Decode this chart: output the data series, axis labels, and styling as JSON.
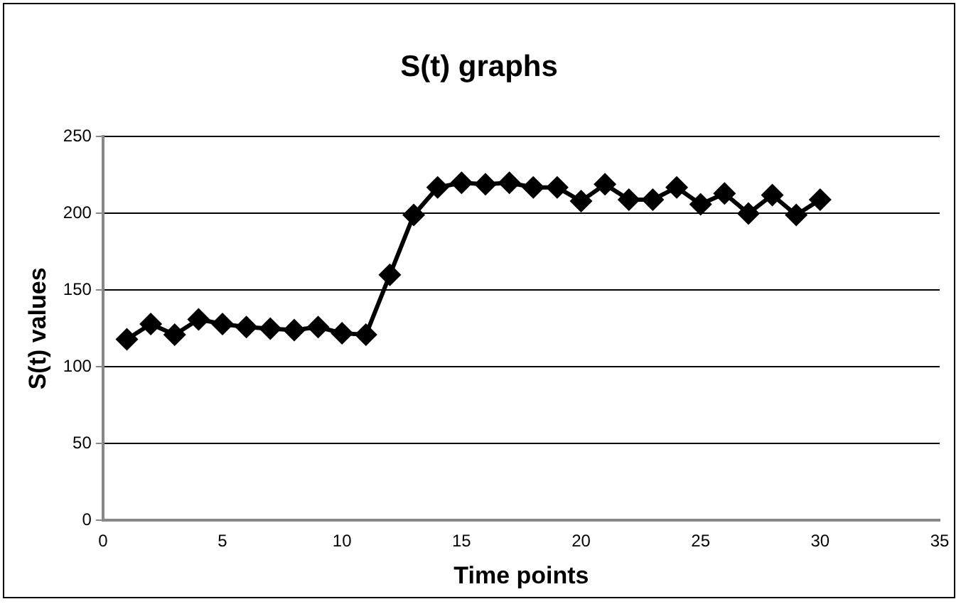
{
  "chart_data": {
    "type": "line",
    "title": "S(t) graphs",
    "xlabel": "Time points",
    "ylabel": "S(t) values",
    "x": [
      1,
      2,
      3,
      4,
      5,
      6,
      7,
      8,
      9,
      10,
      11,
      12,
      13,
      14,
      15,
      16,
      17,
      18,
      19,
      20,
      21,
      22,
      23,
      24,
      25,
      26,
      27,
      28,
      29,
      30
    ],
    "series": [
      {
        "color": "#000000",
        "values": [
          118,
          128,
          121,
          131,
          128,
          126,
          125,
          124,
          126,
          122,
          121,
          160,
          199,
          217,
          220,
          219,
          220,
          217,
          217,
          208,
          219,
          209,
          209,
          217,
          206,
          213,
          200,
          212,
          199,
          209
        ]
      }
    ],
    "xlim": [
      0,
      35
    ],
    "xticks": [
      0,
      5,
      10,
      15,
      20,
      25,
      30,
      35
    ],
    "ylim": [
      0,
      250
    ],
    "yticks": [
      0,
      50,
      100,
      150,
      200,
      250
    ],
    "grid": "y",
    "legend": false,
    "marker": "diamond",
    "line_style": "solid"
  }
}
